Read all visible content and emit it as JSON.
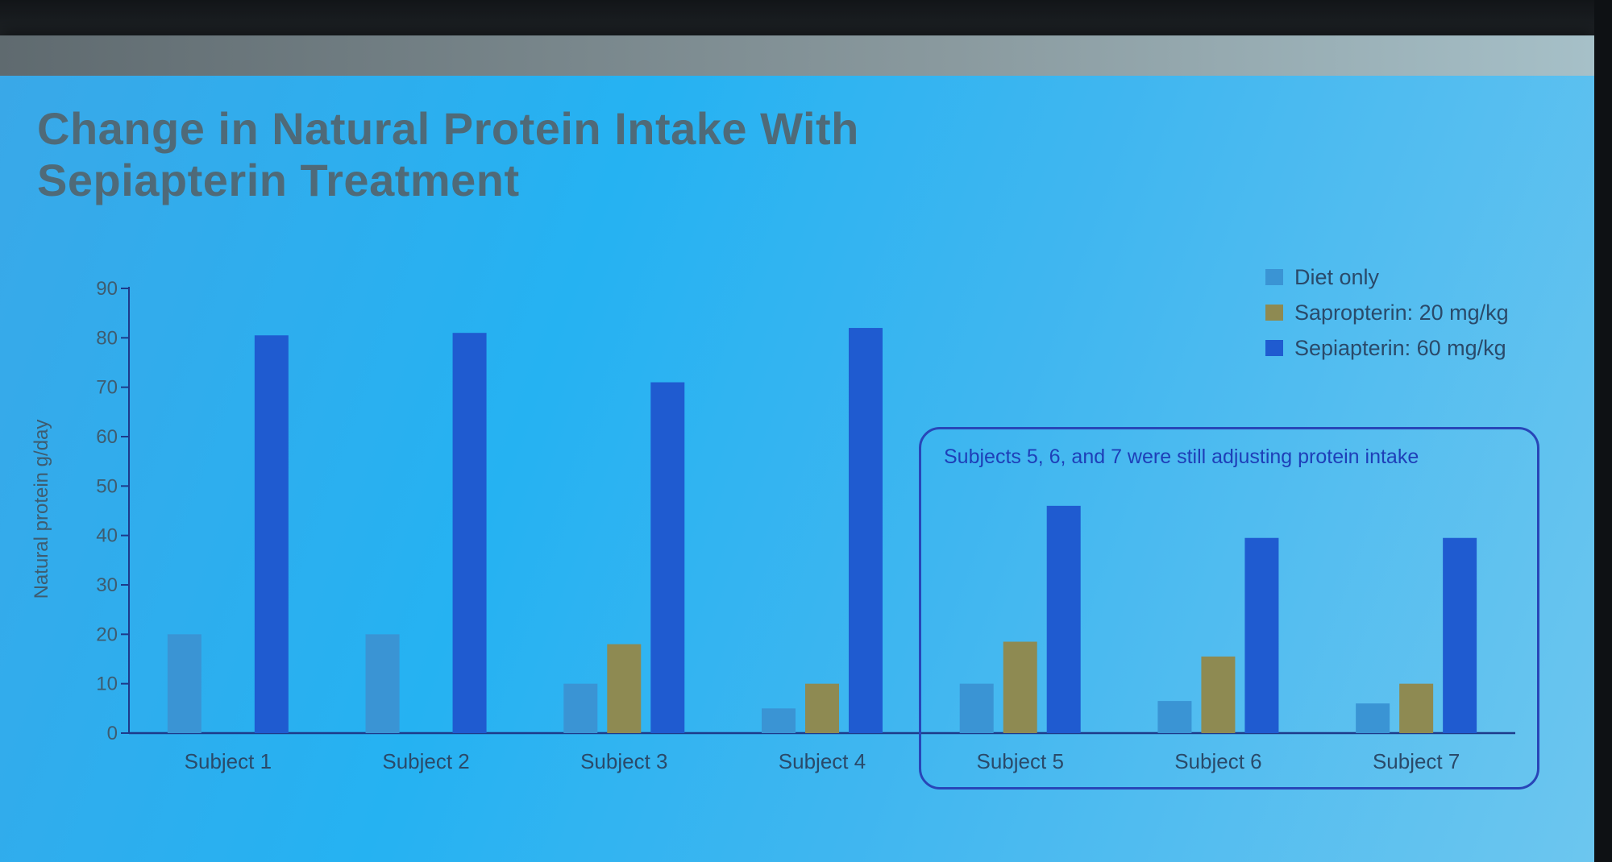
{
  "chart_data": {
    "type": "bar",
    "title": "Change in Natural Protein Intake With Sepiapterin Treatment",
    "title_lines": [
      "Change in Natural Protein Intake With",
      "Sepiapterin Treatment"
    ],
    "ylabel": "Natural protein g/day",
    "xlabel": "",
    "ylim": [
      0,
      90
    ],
    "yticks": [
      0,
      10,
      20,
      30,
      40,
      50,
      60,
      70,
      80,
      90
    ],
    "categories": [
      "Subject 1",
      "Subject 2",
      "Subject 3",
      "Subject 4",
      "Subject 5",
      "Subject 6",
      "Subject 7"
    ],
    "series": [
      {
        "name": "Diet only",
        "color": "#3a94d4",
        "values": [
          20,
          20,
          10,
          5,
          10,
          6.5,
          6
        ]
      },
      {
        "name": "Sapropterin: 20 mg/kg",
        "color": "#8e8a52",
        "values": [
          null,
          null,
          18,
          10,
          18.5,
          15.5,
          10
        ]
      },
      {
        "name": "Sepiapterin: 60 mg/kg",
        "color": "#1f5bd0",
        "values": [
          80.5,
          81,
          71,
          82,
          46,
          39.5,
          39.5
        ]
      }
    ],
    "legend_position": "top-right",
    "grid": false,
    "annotation": "Subjects 5, 6, and 7 were still adjusting protein intake"
  }
}
